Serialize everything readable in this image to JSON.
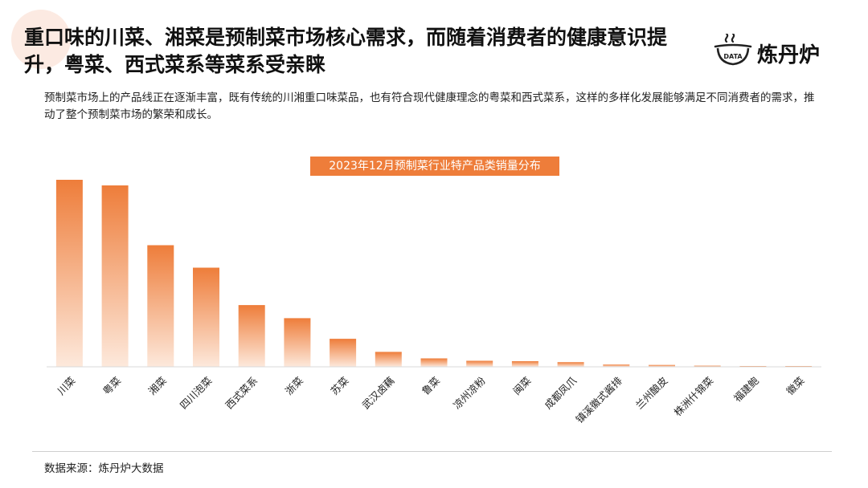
{
  "header": {
    "title": "重口味的川菜、湘菜是预制菜市场核心需求，而随着消费者的健康意识提升，粤菜、西式菜系等菜系受亲睐",
    "logo_badge": "DATA",
    "logo_text": "炼丹炉"
  },
  "intro": "预制菜市场上的产品线正在逐渐丰富，既有传统的川湘重口味菜品，也有符合现代健康理念的粤菜和西式菜系，这样的多样化发展能够满足不同消费者的需求，推动了整个预制菜市场的繁荣和成长。",
  "source": "数据来源：炼丹炉大数据",
  "colors": {
    "accent": "#ee7d3a",
    "bar_top": "#ee7d3a",
    "bar_bottom": "#fde9dc"
  },
  "chart_data": {
    "type": "bar",
    "title": "2023年12月预制菜行业特产品类销量分布",
    "categories": [
      "川菜",
      "粤菜",
      "湘菜",
      "四川泡菜",
      "西式菜系",
      "浙菜",
      "苏菜",
      "武汉卤藕",
      "鲁菜",
      "凉州凉粉",
      "闽菜",
      "成都凤爪",
      "镇溪徽式酱排",
      "兰州酿皮",
      "株洲什锦菜",
      "福建鲍",
      "徽菜"
    ],
    "values": [
      100,
      97,
      65,
      53,
      33,
      26,
      15,
      8,
      4.5,
      3.2,
      3.0,
      2.5,
      1.2,
      1.0,
      0.6,
      0.4,
      0.3
    ],
    "ylim": [
      0,
      100
    ],
    "grid": false,
    "legend": "none"
  }
}
